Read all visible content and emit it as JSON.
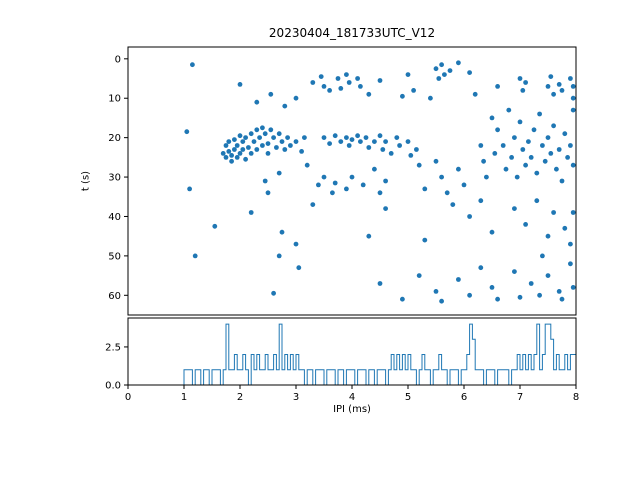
{
  "figure_title": "20230404_181733UTC_V12",
  "chart_data": [
    {
      "type": "scatter",
      "title": "20230404_181733UTC_V12",
      "xlabel": "",
      "ylabel": "t (s)",
      "xlim": [
        0,
        8
      ],
      "ylim": [
        65,
        -3
      ],
      "y_inverted": true,
      "grid": false,
      "legend": "none",
      "marker_color": "#1f77b4",
      "xticks": [
        0,
        1,
        2,
        3,
        4,
        5,
        6,
        7,
        8
      ],
      "yticks": [
        0,
        10,
        20,
        30,
        40,
        50,
        60
      ],
      "yticklabels": [
        "0",
        "10",
        "20",
        "30",
        "40",
        "50",
        "60"
      ],
      "points": [
        [
          1.15,
          1.5
        ],
        [
          1.05,
          18.5
        ],
        [
          1.1,
          33
        ],
        [
          1.2,
          50
        ],
        [
          1.55,
          42.5
        ],
        [
          1.7,
          24
        ],
        [
          1.75,
          22
        ],
        [
          1.75,
          25
        ],
        [
          1.8,
          21
        ],
        [
          1.8,
          23.5
        ],
        [
          1.85,
          24.5
        ],
        [
          1.85,
          26
        ],
        [
          1.9,
          20.5
        ],
        [
          1.9,
          23
        ],
        [
          1.95,
          22
        ],
        [
          1.95,
          25
        ],
        [
          2.0,
          19.5
        ],
        [
          2.0,
          24
        ],
        [
          2.05,
          21
        ],
        [
          2.05,
          23
        ],
        [
          2.1,
          20
        ],
        [
          2.1,
          25.5
        ],
        [
          2.15,
          22.5
        ],
        [
          2.2,
          19
        ],
        [
          2.2,
          24
        ],
        [
          2.25,
          21
        ],
        [
          2.3,
          18
        ],
        [
          2.3,
          23
        ],
        [
          2.35,
          20
        ],
        [
          2.4,
          17.5
        ],
        [
          2.4,
          22
        ],
        [
          2.45,
          19
        ],
        [
          2.5,
          21.5
        ],
        [
          2.5,
          24
        ],
        [
          2.55,
          18
        ],
        [
          2.6,
          20
        ],
        [
          2.65,
          22.5
        ],
        [
          2.7,
          19
        ],
        [
          2.75,
          21
        ],
        [
          2.8,
          23
        ],
        [
          2.85,
          20
        ],
        [
          2.9,
          22
        ],
        [
          3.0,
          21
        ],
        [
          3.1,
          23.5
        ],
        [
          3.15,
          20
        ],
        [
          2.0,
          6.5
        ],
        [
          2.3,
          11
        ],
        [
          2.55,
          9
        ],
        [
          2.8,
          12
        ],
        [
          3.0,
          10
        ],
        [
          3.3,
          6
        ],
        [
          3.45,
          4.5
        ],
        [
          3.5,
          7
        ],
        [
          3.6,
          8
        ],
        [
          3.75,
          5
        ],
        [
          3.8,
          7.5
        ],
        [
          3.9,
          4
        ],
        [
          3.95,
          6
        ],
        [
          4.1,
          5
        ],
        [
          4.15,
          7
        ],
        [
          4.3,
          9
        ],
        [
          4.5,
          5.5
        ],
        [
          4.9,
          9.5
        ],
        [
          5.0,
          4
        ],
        [
          5.1,
          8
        ],
        [
          5.4,
          10
        ],
        [
          5.5,
          2.5
        ],
        [
          5.55,
          5
        ],
        [
          5.6,
          1.5
        ],
        [
          5.65,
          4
        ],
        [
          5.75,
          3
        ],
        [
          5.9,
          1
        ],
        [
          6.1,
          3.5
        ],
        [
          6.2,
          9
        ],
        [
          6.6,
          7
        ],
        [
          7.0,
          5
        ],
        [
          7.05,
          8
        ],
        [
          7.1,
          6
        ],
        [
          7.5,
          7
        ],
        [
          7.55,
          4.5
        ],
        [
          7.6,
          9
        ],
        [
          7.7,
          6.5
        ],
        [
          7.75,
          8
        ],
        [
          7.9,
          5
        ],
        [
          7.95,
          10
        ],
        [
          7.95,
          7
        ],
        [
          3.5,
          20
        ],
        [
          3.6,
          21.5
        ],
        [
          3.7,
          19.5
        ],
        [
          3.8,
          21
        ],
        [
          3.9,
          20
        ],
        [
          3.95,
          22
        ],
        [
          4.0,
          20.5
        ],
        [
          4.1,
          19.5
        ],
        [
          4.15,
          21
        ],
        [
          4.25,
          20
        ],
        [
          4.3,
          22.5
        ],
        [
          4.4,
          21
        ],
        [
          4.5,
          19.5
        ],
        [
          4.55,
          23
        ],
        [
          4.6,
          21
        ],
        [
          4.7,
          24
        ],
        [
          4.8,
          20
        ],
        [
          4.85,
          22
        ],
        [
          5.0,
          21
        ],
        [
          5.05,
          24.5
        ],
        [
          5.15,
          23
        ],
        [
          2.45,
          31
        ],
        [
          2.5,
          34
        ],
        [
          2.7,
          29
        ],
        [
          3.2,
          27
        ],
        [
          3.4,
          32
        ],
        [
          3.5,
          30
        ],
        [
          3.65,
          34
        ],
        [
          3.7,
          31.5
        ],
        [
          3.9,
          33
        ],
        [
          4.0,
          30
        ],
        [
          4.2,
          32
        ],
        [
          4.4,
          28
        ],
        [
          4.5,
          34
        ],
        [
          4.6,
          31
        ],
        [
          5.2,
          27
        ],
        [
          5.3,
          33
        ],
        [
          5.5,
          26
        ],
        [
          5.6,
          30
        ],
        [
          5.7,
          34
        ],
        [
          5.9,
          28
        ],
        [
          6.0,
          32
        ],
        [
          6.3,
          22
        ],
        [
          6.35,
          26
        ],
        [
          6.4,
          30
        ],
        [
          6.5,
          15
        ],
        [
          6.55,
          24
        ],
        [
          6.6,
          18
        ],
        [
          6.7,
          22
        ],
        [
          6.75,
          28
        ],
        [
          6.8,
          13
        ],
        [
          6.85,
          25
        ],
        [
          6.9,
          20
        ],
        [
          6.95,
          30
        ],
        [
          7.0,
          16
        ],
        [
          7.05,
          23
        ],
        [
          7.1,
          27
        ],
        [
          7.15,
          21
        ],
        [
          7.2,
          25
        ],
        [
          7.25,
          18
        ],
        [
          7.3,
          29
        ],
        [
          7.35,
          14
        ],
        [
          7.4,
          22
        ],
        [
          7.45,
          26
        ],
        [
          7.5,
          20
        ],
        [
          7.55,
          24
        ],
        [
          7.6,
          17
        ],
        [
          7.65,
          28
        ],
        [
          7.7,
          23
        ],
        [
          7.75,
          31
        ],
        [
          7.8,
          19
        ],
        [
          7.85,
          25
        ],
        [
          7.9,
          22
        ],
        [
          7.95,
          27
        ],
        [
          7.95,
          13
        ],
        [
          2.2,
          39
        ],
        [
          2.75,
          44
        ],
        [
          3.0,
          47
        ],
        [
          3.3,
          37
        ],
        [
          4.3,
          45
        ],
        [
          4.6,
          38
        ],
        [
          5.3,
          46
        ],
        [
          5.8,
          37
        ],
        [
          6.1,
          40
        ],
        [
          6.3,
          36
        ],
        [
          6.5,
          44
        ],
        [
          6.9,
          38
        ],
        [
          7.1,
          42
        ],
        [
          7.3,
          36
        ],
        [
          7.5,
          45
        ],
        [
          7.6,
          39
        ],
        [
          7.8,
          43
        ],
        [
          7.95,
          39
        ],
        [
          7.9,
          47
        ],
        [
          2.6,
          59.5
        ],
        [
          2.7,
          50
        ],
        [
          3.05,
          53
        ],
        [
          4.5,
          57
        ],
        [
          4.9,
          61
        ],
        [
          5.2,
          55
        ],
        [
          5.5,
          59
        ],
        [
          5.6,
          61.5
        ],
        [
          5.9,
          56
        ],
        [
          6.1,
          60
        ],
        [
          6.3,
          53
        ],
        [
          6.5,
          58
        ],
        [
          6.6,
          61
        ],
        [
          6.9,
          54
        ],
        [
          7.0,
          60.5
        ],
        [
          7.2,
          57
        ],
        [
          7.35,
          60
        ],
        [
          7.4,
          50
        ],
        [
          7.5,
          55
        ],
        [
          7.7,
          59
        ],
        [
          7.75,
          61
        ],
        [
          7.9,
          52
        ],
        [
          7.95,
          58
        ]
      ]
    },
    {
      "type": "step-histogram",
      "title": "",
      "xlabel": "IPI (ms)",
      "ylabel": "",
      "xlim": [
        0,
        8
      ],
      "ylim": [
        0,
        4.4
      ],
      "grid": false,
      "legend": "none",
      "line_color": "#1f77b4",
      "xticks": [
        0,
        1,
        2,
        3,
        4,
        5,
        6,
        7,
        8
      ],
      "xticklabels": [
        "0",
        "1",
        "2",
        "3",
        "4",
        "5",
        "6",
        "7",
        "8"
      ],
      "yticks": [
        0.0,
        2.5
      ],
      "yticklabels": [
        "0.0",
        "2.5"
      ],
      "bin_start": 0,
      "bin_width": 0.05,
      "counts": [
        0,
        0,
        0,
        0,
        0,
        0,
        0,
        0,
        0,
        0,
        0,
        0,
        0,
        0,
        0,
        0,
        0,
        0,
        0,
        0,
        1,
        1,
        1,
        0,
        1,
        1,
        0,
        1,
        1,
        0,
        1,
        1,
        1,
        0,
        1,
        4,
        1,
        1,
        2,
        1,
        1,
        2,
        1,
        0,
        2,
        1,
        2,
        1,
        1,
        2,
        1,
        1,
        2,
        1,
        4,
        1,
        2,
        1,
        2,
        1,
        2,
        1,
        1,
        0,
        1,
        1,
        0,
        1,
        1,
        1,
        0,
        1,
        1,
        1,
        0,
        1,
        1,
        0,
        1,
        1,
        1,
        0,
        1,
        1,
        1,
        0,
        1,
        1,
        0,
        1,
        1,
        1,
        0,
        1,
        2,
        1,
        2,
        1,
        2,
        1,
        2,
        1,
        1,
        0,
        1,
        2,
        1,
        1,
        0,
        1,
        1,
        2,
        1,
        1,
        0,
        1,
        1,
        1,
        0,
        1,
        1,
        2,
        4,
        3,
        1,
        1,
        1,
        0,
        1,
        1,
        1,
        0,
        1,
        1,
        1,
        1,
        0,
        1,
        1,
        2,
        1,
        2,
        1,
        2,
        1,
        2,
        4,
        1,
        2,
        4,
        4,
        3,
        1,
        2,
        1,
        1,
        2,
        1,
        2,
        2
      ]
    }
  ],
  "styles": {
    "accent_color": "#1f77b4",
    "axis_color": "#000000",
    "background_color": "#ffffff"
  }
}
